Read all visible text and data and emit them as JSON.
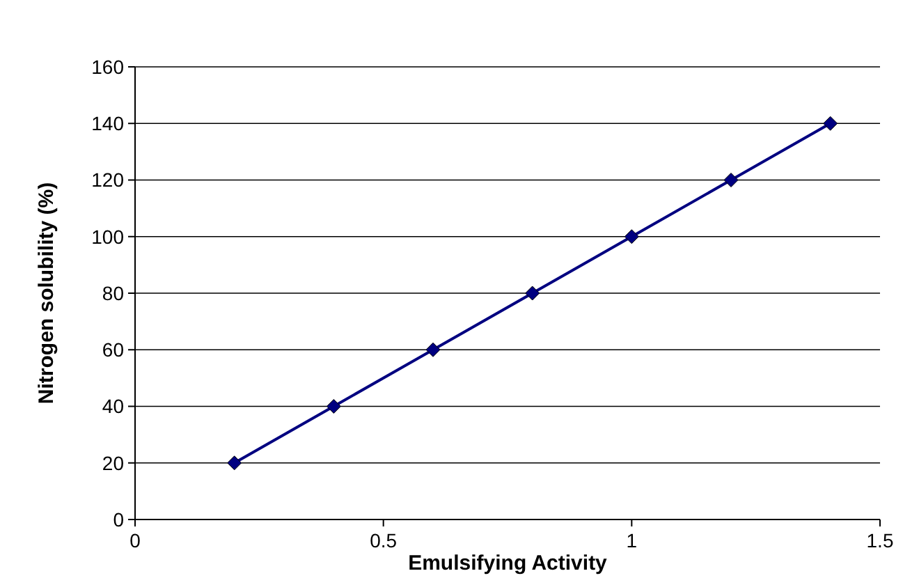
{
  "chart_data": {
    "type": "line",
    "xlabel": "Emulsifying Activity",
    "ylabel": "Nitrogen solubility (%)",
    "x": [
      0.2,
      0.4,
      0.6,
      0.8,
      1.0,
      1.2,
      1.4
    ],
    "series": [
      {
        "color": "#000080",
        "values": [
          20,
          40,
          60,
          80,
          100,
          120,
          140
        ]
      }
    ],
    "xlim": [
      0,
      1.5
    ],
    "xticks": [
      0,
      0.5,
      1,
      1.5
    ],
    "ylim": [
      0,
      160
    ],
    "yticks": [
      0,
      20,
      40,
      60,
      80,
      100,
      120,
      140,
      160
    ],
    "grid": "y",
    "marker": "diamond",
    "line_style": "solid"
  }
}
